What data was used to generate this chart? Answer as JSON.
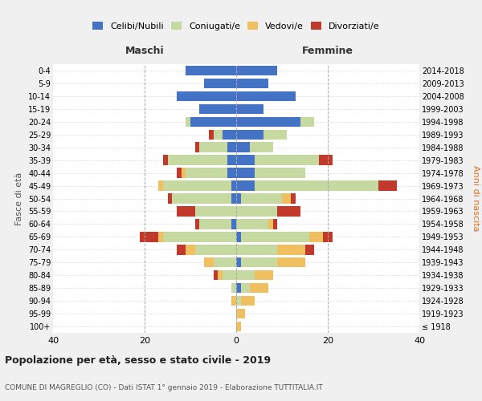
{
  "age_groups": [
    "100+",
    "95-99",
    "90-94",
    "85-89",
    "80-84",
    "75-79",
    "70-74",
    "65-69",
    "60-64",
    "55-59",
    "50-54",
    "45-49",
    "40-44",
    "35-39",
    "30-34",
    "25-29",
    "20-24",
    "15-19",
    "10-14",
    "5-9",
    "0-4"
  ],
  "birth_years": [
    "≤ 1918",
    "1919-1923",
    "1924-1928",
    "1929-1933",
    "1934-1938",
    "1939-1943",
    "1944-1948",
    "1949-1953",
    "1954-1958",
    "1959-1963",
    "1964-1968",
    "1969-1973",
    "1974-1978",
    "1979-1983",
    "1984-1988",
    "1989-1993",
    "1994-1998",
    "1999-2003",
    "2004-2008",
    "2009-2013",
    "2014-2018"
  ],
  "male_celibi": [
    0,
    0,
    0,
    0,
    0,
    0,
    0,
    0,
    1,
    0,
    1,
    1,
    2,
    2,
    2,
    3,
    10,
    8,
    13,
    7,
    11
  ],
  "male_coniugati": [
    0,
    0,
    0,
    1,
    3,
    5,
    9,
    16,
    7,
    9,
    13,
    15,
    9,
    13,
    6,
    2,
    1,
    0,
    0,
    0,
    0
  ],
  "male_vedovi": [
    0,
    0,
    1,
    0,
    1,
    2,
    2,
    1,
    0,
    0,
    0,
    1,
    1,
    0,
    0,
    0,
    0,
    0,
    0,
    0,
    0
  ],
  "male_divorziati": [
    0,
    0,
    0,
    0,
    1,
    0,
    2,
    4,
    1,
    4,
    1,
    0,
    1,
    1,
    1,
    1,
    0,
    0,
    0,
    0,
    0
  ],
  "female_celibi": [
    0,
    0,
    0,
    1,
    0,
    1,
    0,
    1,
    0,
    0,
    1,
    4,
    4,
    4,
    3,
    6,
    14,
    6,
    13,
    7,
    9
  ],
  "female_coniugati": [
    0,
    0,
    1,
    2,
    4,
    8,
    9,
    15,
    7,
    9,
    9,
    27,
    11,
    14,
    5,
    5,
    3,
    0,
    0,
    0,
    0
  ],
  "female_vedovi": [
    1,
    2,
    3,
    4,
    4,
    6,
    6,
    3,
    1,
    0,
    2,
    0,
    0,
    0,
    0,
    0,
    0,
    0,
    0,
    0,
    0
  ],
  "female_divorziati": [
    0,
    0,
    0,
    0,
    0,
    0,
    2,
    2,
    1,
    5,
    1,
    4,
    0,
    3,
    0,
    0,
    0,
    0,
    0,
    0,
    0
  ],
  "color_celibi": "#4472C4",
  "color_coniugati": "#c5d9a0",
  "color_vedovi": "#f0c060",
  "color_divorziati": "#c0392b",
  "xlim": 40,
  "title": "Popolazione per età, sesso e stato civile - 2019",
  "subtitle": "COMUNE DI MAGREGLIO (CO) - Dati ISTAT 1° gennaio 2019 - Elaborazione TUTTITALIA.IT",
  "ylabel": "Fasce di età",
  "ylabel_right": "Anni di nascita",
  "xlabel_maschi": "Maschi",
  "xlabel_femmine": "Femmine",
  "bg_color": "#f0f0f0",
  "plot_bg_color": "#ffffff"
}
